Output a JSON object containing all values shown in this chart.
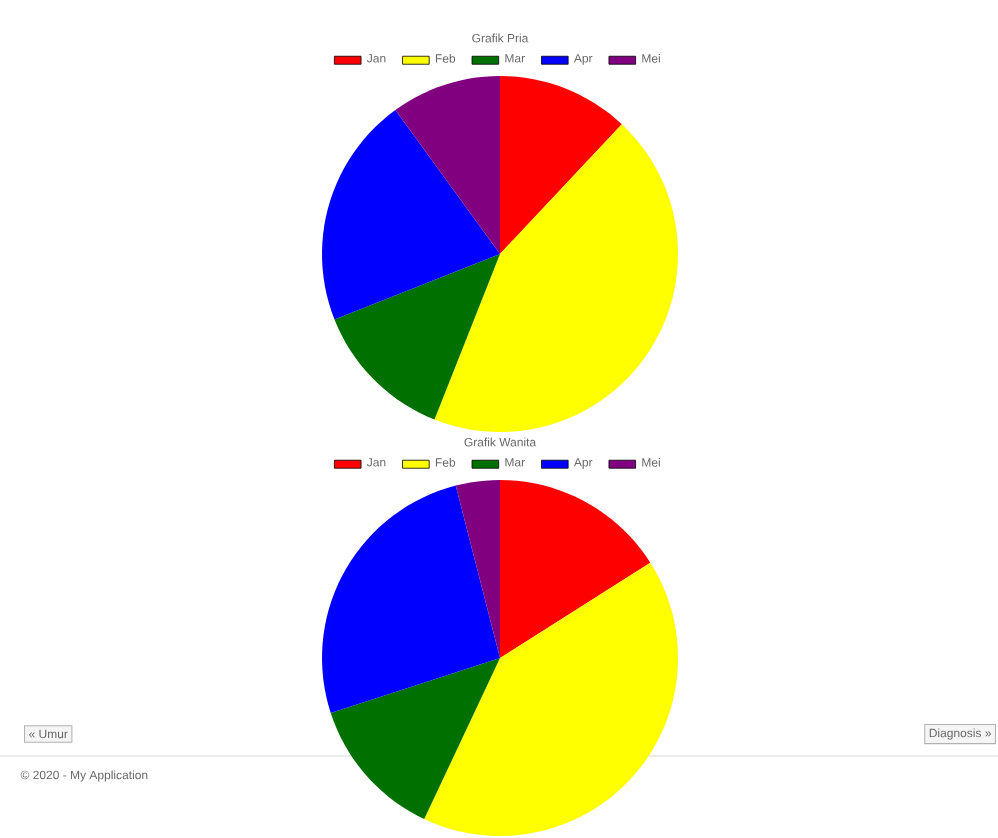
{
  "chart_data": [
    {
      "type": "pie",
      "title": "Grafik Pria",
      "categories": [
        "Jan",
        "Feb",
        "Mar",
        "Apr",
        "Mei"
      ],
      "values": [
        12,
        44,
        13,
        21,
        10
      ],
      "colors": [
        "#ff0000",
        "#ffff00",
        "#007000",
        "#0000ff",
        "#800080"
      ],
      "legend": "top"
    },
    {
      "type": "pie",
      "title": "Grafik Wanita",
      "categories": [
        "Jan",
        "Feb",
        "Mar",
        "Apr",
        "Mei"
      ],
      "values": [
        16,
        41,
        13,
        26,
        4
      ],
      "colors": [
        "#ff0000",
        "#ffff00",
        "#007000",
        "#0000ff",
        "#800080"
      ],
      "legend": "top",
      "annotations": [
        "« Umur",
        "Diagnosis »",
        "© 2020 - My Application"
      ]
    }
  ]
}
